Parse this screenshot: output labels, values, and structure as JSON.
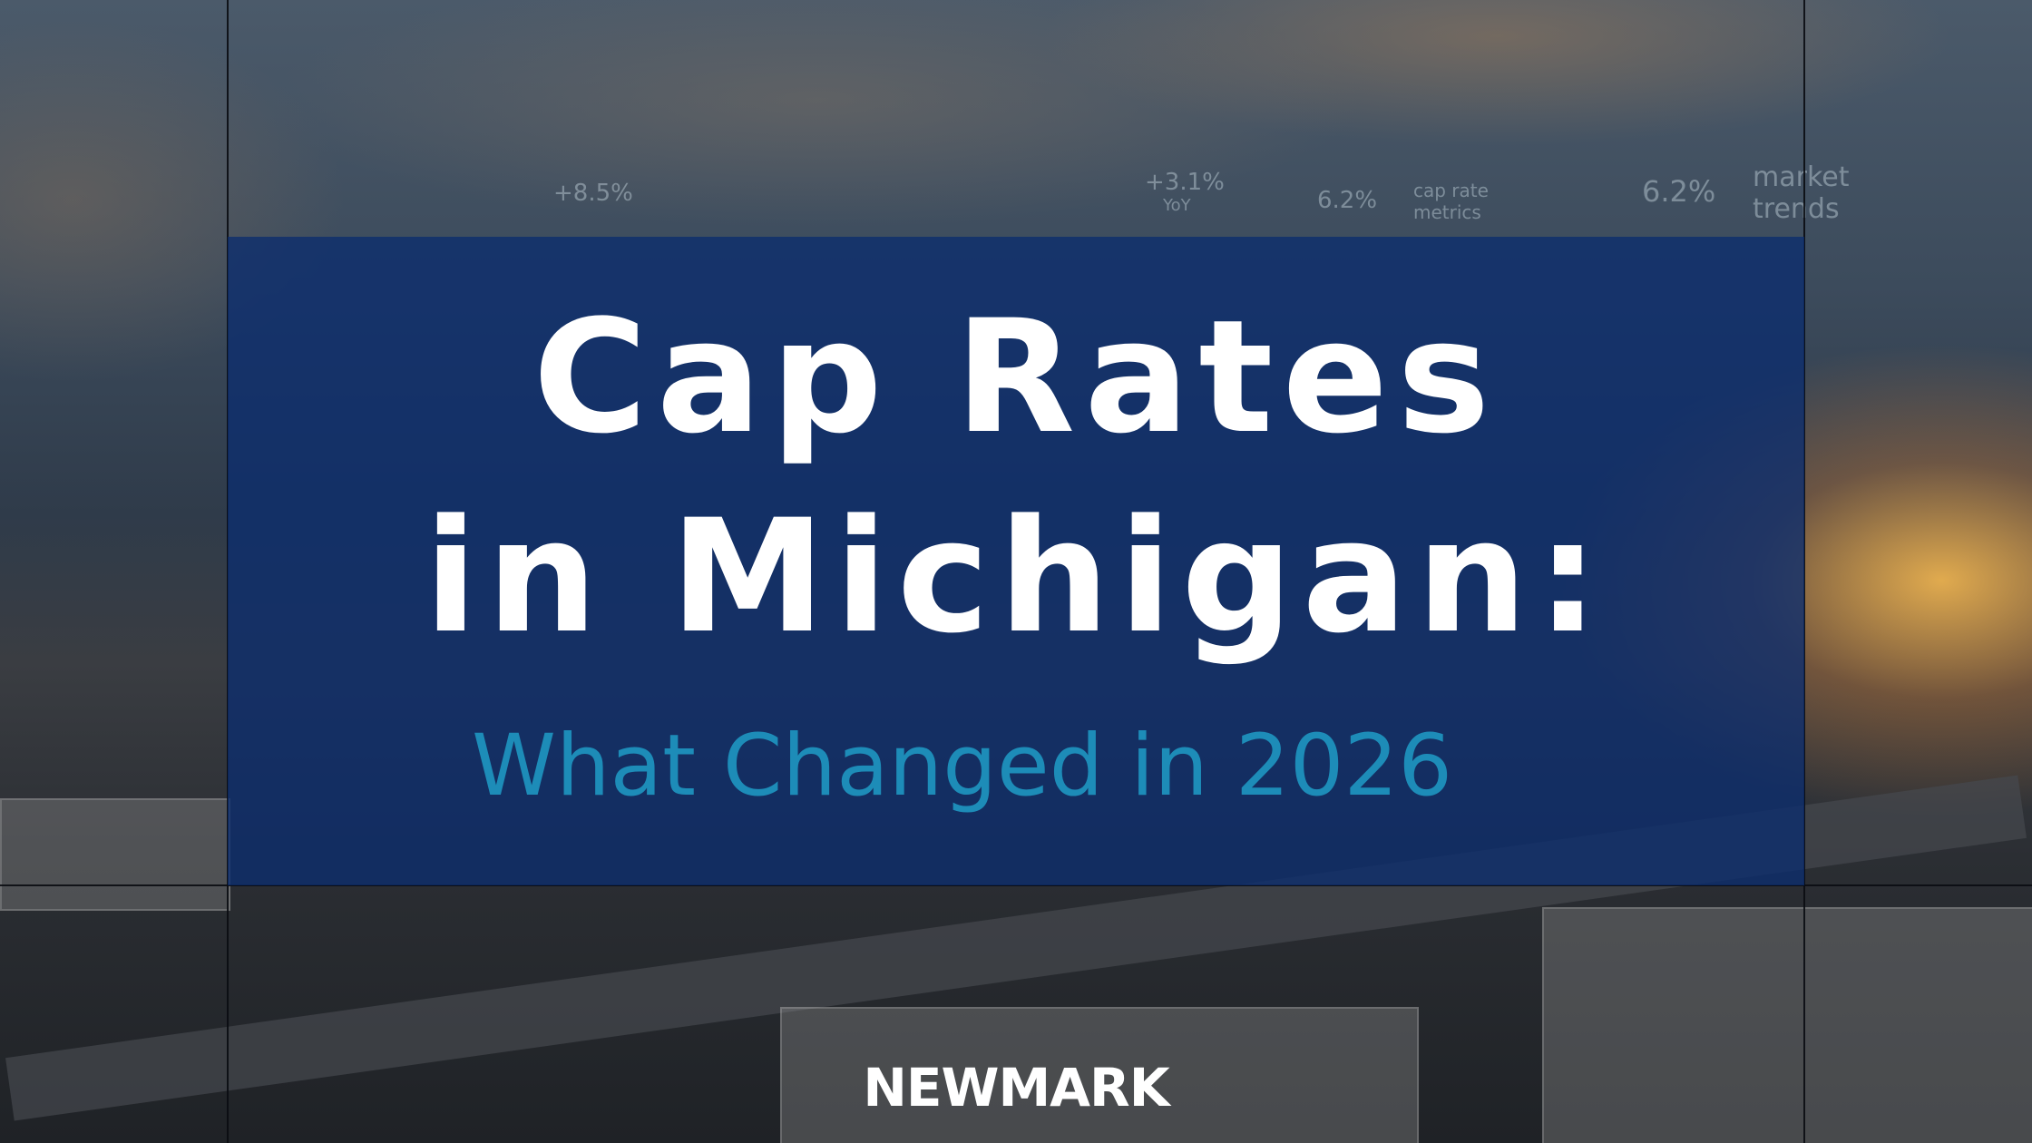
{
  "title_lines": [
    "Cap Rates",
    "in Michigan:"
  ],
  "subtitle": "What Changed in 2026",
  "brand": "NEWMARK",
  "background_labels": [
    {
      "text": "+8.5%"
    },
    {
      "text": "+3.1%"
    },
    {
      "text": "YoY"
    },
    {
      "text": "6.2%"
    },
    {
      "text": "cap rate metrics"
    },
    {
      "text": "6.2%"
    },
    {
      "text": "market trends"
    }
  ]
}
